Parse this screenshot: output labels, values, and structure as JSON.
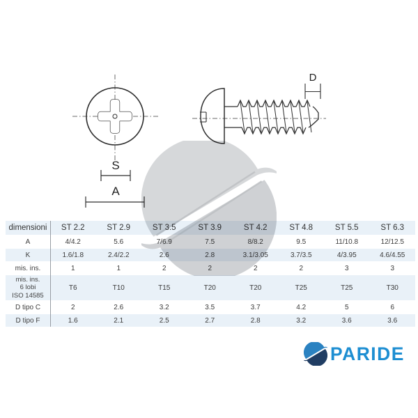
{
  "drawing": {
    "labels": {
      "s": "S",
      "a": "A",
      "d": "D"
    },
    "views": [
      "front-view-phillips-pan-head",
      "side-view-threaded-screw"
    ]
  },
  "table": {
    "header": [
      "dimensioni",
      "ST 2.2",
      "ST 2.9",
      "ST 3.5",
      "ST 3.9",
      "ST 4.2",
      "ST 4.8",
      "ST 5.5",
      "ST 6.3"
    ],
    "rows": [
      {
        "label": "A",
        "values": [
          "4/4.2",
          "5.6",
          "7/6.9",
          "7.5",
          "8/8.2",
          "9.5",
          "11/10.8",
          "12/12.5"
        ]
      },
      {
        "label": "K",
        "values": [
          "1.6/1.8",
          "2.4/2.2",
          "2.6",
          "2.8",
          "3.1/3.05",
          "3.7/3.5",
          "4/3.95",
          "4.6/4.55"
        ]
      },
      {
        "label": "mis. ins.",
        "values": [
          "1",
          "1",
          "2",
          "2",
          "2",
          "2",
          "3",
          "3"
        ]
      },
      {
        "label": "mis. ins.\n6 lobi\nISO 14585",
        "values": [
          "T6",
          "T10",
          "T15",
          "T20",
          "T20",
          "T25",
          "T25",
          "T30"
        ]
      },
      {
        "label": "D tipo C",
        "values": [
          "2",
          "2.6",
          "3.2",
          "3.5",
          "3.7",
          "4.2",
          "5",
          "6"
        ]
      },
      {
        "label": "D tipo F",
        "values": [
          "1.6",
          "2.1",
          "2.5",
          "2.7",
          "2.8",
          "3.2",
          "3.6",
          "3.6"
        ]
      }
    ]
  },
  "logo": {
    "brand": "PARIDE"
  },
  "colors": {
    "accent_blue": "#1d8ed2",
    "mark_top_blue": "#2b82c1",
    "mark_bottom_navy": "#203d63",
    "row_blue": "#e9f1f8",
    "watermark_gray_top": "#d6d8da",
    "watermark_gray_bottom": "#cfd1d4",
    "line_color": "#2e2e2e"
  }
}
